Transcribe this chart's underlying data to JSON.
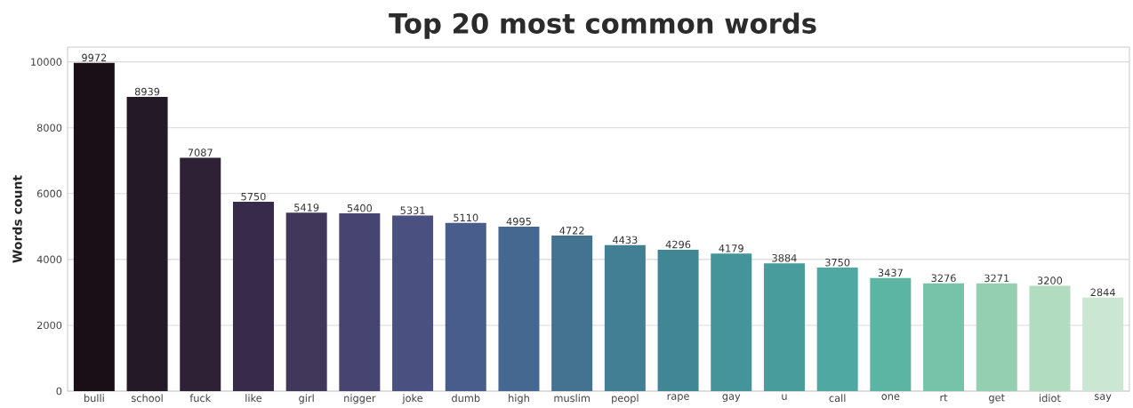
{
  "chart_data": {
    "type": "bar",
    "title": "Top 20 most common words",
    "ylabel": "Words count",
    "categories": [
      "bulli",
      "school",
      "fuck",
      "like",
      "girl",
      "nigger",
      "joke",
      "dumb",
      "high",
      "muslim",
      "peopl",
      "rape",
      "gay",
      "u",
      "call",
      "one",
      "rt",
      "get",
      "idiot",
      "say"
    ],
    "values": [
      9972,
      8939,
      7087,
      5750,
      5419,
      5400,
      5331,
      5110,
      4995,
      4722,
      4433,
      4296,
      4179,
      3884,
      3750,
      3437,
      3276,
      3271,
      3200,
      2844
    ],
    "colors": [
      "#1a0f17",
      "#241927",
      "#2e2135",
      "#372a4a",
      "#40375a",
      "#474471",
      "#4a5080",
      "#485d8b",
      "#44688f",
      "#437391",
      "#427e94",
      "#418694",
      "#449499",
      "#489c9c",
      "#4fa8a2",
      "#5cb5a3",
      "#76c3a9",
      "#93cfb0",
      "#b1dcbf",
      "#cbe7d4"
    ],
    "ylim": [
      0,
      10450
    ],
    "yticks": [
      0,
      2000,
      4000,
      6000,
      8000,
      10000
    ],
    "grid": "y",
    "data_labels": true
  }
}
